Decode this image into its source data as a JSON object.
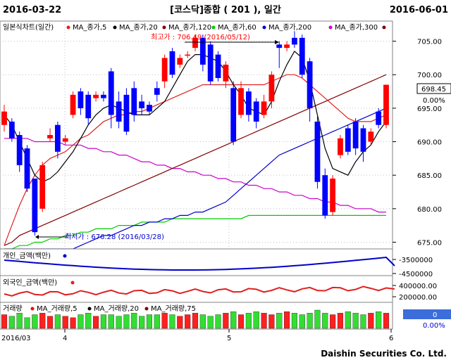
{
  "header": {
    "start_date": "2016-03-22",
    "title": "[코스닥]종합 ( 201 ), 일간",
    "end_date": "2016-06-01"
  },
  "legend": {
    "main": "일본식차트(일간)",
    "ma5": "MA_종가,5",
    "ma20": "MA_종가,20",
    "ma120": "MA_종가,120",
    "ma60": "MA_종가,60",
    "ma200": "MA_종가,200",
    "ma300": "MA_종가,300",
    "colors": {
      "ma5": "#000000",
      "ma20": "#e02020",
      "ma120": "#800000",
      "ma60": "#00cc00",
      "ma200": "#0000cc",
      "ma300": "#cc00cc",
      "up": "#ff0000",
      "down": "#0000ff"
    }
  },
  "annotations": {
    "high": "최고가 : 706.49 (2016/05/12)",
    "low": "최저가 : 676.28 (2016/03/28)"
  },
  "price_axis": {
    "ticks": [
      "705.00",
      "700.00",
      "695.00",
      "690.00",
      "685.00",
      "680.00",
      "675.00"
    ],
    "current": "698.45",
    "change": "0.00%",
    "min": 674,
    "max": 708
  },
  "panel_individual": {
    "label": "개인_금액(백만)",
    "ticks": [
      "-3500000",
      "-4500000"
    ]
  },
  "panel_foreign": {
    "label": "외국인_금액(백만)",
    "ticks": [
      "400000.00",
      "200000.00"
    ]
  },
  "panel_volume": {
    "label": "거래량",
    "ma5": "MA_거래량,5",
    "ma20": "MA_거래량,20",
    "ma75": "MA_거래량,75",
    "value": "0",
    "change": "0.00%"
  },
  "x_axis": {
    "labels": [
      "2016/03",
      "4",
      "5",
      "6"
    ]
  },
  "footer": "Daishin Securities Co. Ltd.",
  "chart_data": {
    "type": "candlestick",
    "candles": [
      {
        "o": 692.5,
        "c": 694.5,
        "h": 695.5,
        "l": 691.5
      },
      {
        "o": 693,
        "c": 690.5,
        "h": 693.5,
        "l": 690
      },
      {
        "o": 691,
        "c": 686.5,
        "h": 691.5,
        "l": 685.5
      },
      {
        "o": 689,
        "c": 683,
        "h": 689.5,
        "l": 682.5
      },
      {
        "o": 684.5,
        "c": 676.5,
        "h": 684.5,
        "l": 676
      },
      {
        "o": 680,
        "c": 686.5,
        "h": 687,
        "l": 679.5
      },
      {
        "o": 690.5,
        "c": 691,
        "h": 692,
        "l": 690
      },
      {
        "o": 692.5,
        "c": 688.5,
        "h": 693,
        "l": 687.5
      },
      {
        "o": 690,
        "c": 690.5,
        "h": 691,
        "l": 689.5
      },
      {
        "o": 694,
        "c": 697,
        "h": 697.5,
        "l": 693.5
      },
      {
        "o": 697.5,
        "c": 695,
        "h": 698,
        "l": 694
      },
      {
        "o": 697,
        "c": 693.5,
        "h": 697.5,
        "l": 692.5
      },
      {
        "o": 696.5,
        "c": 697,
        "h": 697.5,
        "l": 696
      },
      {
        "o": 697,
        "c": 696.5,
        "h": 697.5,
        "l": 696
      },
      {
        "o": 700.5,
        "c": 694,
        "h": 701,
        "l": 692
      },
      {
        "o": 696,
        "c": 693,
        "h": 697.5,
        "l": 692
      },
      {
        "o": 697,
        "c": 691.5,
        "h": 698,
        "l": 691
      },
      {
        "o": 698,
        "c": 694,
        "h": 699,
        "l": 693
      },
      {
        "o": 696,
        "c": 695,
        "h": 697,
        "l": 694
      },
      {
        "o": 695.5,
        "c": 694.5,
        "h": 696,
        "l": 694
      },
      {
        "o": 698,
        "c": 697,
        "h": 699,
        "l": 696
      },
      {
        "o": 699,
        "c": 702.5,
        "h": 703,
        "l": 698
      },
      {
        "o": 703.5,
        "c": 700,
        "h": 704,
        "l": 699.5
      },
      {
        "o": 701.5,
        "c": 702.5,
        "h": 703,
        "l": 701
      },
      {
        "o": 703,
        "c": 703,
        "h": 703.5,
        "l": 702.5
      },
      {
        "o": 704,
        "c": 705.5,
        "h": 706,
        "l": 703.5
      },
      {
        "o": 705.5,
        "c": 701.5,
        "h": 706,
        "l": 700.5
      },
      {
        "o": 704.5,
        "c": 699,
        "h": 705,
        "l": 698.5
      },
      {
        "o": 703,
        "c": 699.5,
        "h": 703.5,
        "l": 699
      },
      {
        "o": 699,
        "c": 701.5,
        "h": 702,
        "l": 698
      },
      {
        "o": 698,
        "c": 690,
        "h": 699,
        "l": 689.5
      },
      {
        "o": 694,
        "c": 698,
        "h": 699,
        "l": 693.5
      },
      {
        "o": 697.5,
        "c": 694,
        "h": 698,
        "l": 693
      },
      {
        "o": 696,
        "c": 693,
        "h": 696.5,
        "l": 692
      },
      {
        "o": 694,
        "c": 696,
        "h": 697,
        "l": 693.5
      },
      {
        "o": 696,
        "c": 700,
        "h": 700.5,
        "l": 695
      },
      {
        "o": 704.5,
        "c": 704,
        "h": 705,
        "l": 701
      },
      {
        "o": 704,
        "c": 704.5,
        "h": 705,
        "l": 703.5
      },
      {
        "o": 705.5,
        "c": 704.5,
        "h": 706.5,
        "l": 704
      },
      {
        "o": 705.5,
        "c": 700,
        "h": 706,
        "l": 699.5
      },
      {
        "o": 702,
        "c": 695,
        "h": 702.5,
        "l": 693
      },
      {
        "o": 693,
        "c": 684,
        "h": 694,
        "l": 683
      },
      {
        "o": 685,
        "c": 679,
        "h": 686,
        "l": 678.5
      },
      {
        "o": 679.5,
        "c": 684.5,
        "h": 685,
        "l": 679
      },
      {
        "o": 688,
        "c": 690.5,
        "h": 691,
        "l": 687.5
      },
      {
        "o": 692,
        "c": 688.5,
        "h": 692.5,
        "l": 688
      },
      {
        "o": 693,
        "c": 689,
        "h": 693.5,
        "l": 688
      },
      {
        "o": 692,
        "c": 688.5,
        "h": 692.5,
        "l": 687
      },
      {
        "o": 690,
        "c": 691.5,
        "h": 692,
        "l": 689.5
      },
      {
        "o": 694.5,
        "c": 692.5,
        "h": 695,
        "l": 692
      },
      {
        "o": 692.5,
        "c": 698.5,
        "h": 698.5,
        "l": 692
      }
    ],
    "ma5": [
      694,
      692.5,
      690,
      687.5,
      685,
      684,
      684.5,
      685.5,
      687,
      688.5,
      690.5,
      692.5,
      694,
      695,
      695.5,
      695,
      694.5,
      694,
      694,
      694,
      695,
      696,
      698,
      700,
      702,
      703,
      703,
      702.5,
      702,
      700.5,
      698.5,
      697,
      695,
      694.5,
      694,
      696,
      699,
      701.5,
      703.5,
      702.5,
      699,
      694,
      689,
      686,
      685.5,
      685,
      687,
      688.5,
      689.5,
      691.5,
      693
    ],
    "ma20": [
      674.5,
      677.5,
      680.5,
      683,
      685,
      686.5,
      687.5,
      688,
      688.5,
      689.5,
      690.5,
      691,
      692,
      693,
      693.5,
      694,
      694,
      694.5,
      694.5,
      695,
      695.5,
      696,
      696.5,
      697,
      697.5,
      698,
      698.5,
      698.5,
      698.5,
      698.5,
      698.5,
      698.5,
      698.5,
      698.5,
      698.5,
      699,
      699.5,
      700,
      700,
      699.5,
      698.5,
      697.5,
      696.5,
      695.5,
      694.5,
      693.5,
      693,
      693,
      693,
      693.5,
      694
    ],
    "ma60": [
      674,
      674,
      674.5,
      674.5,
      675,
      675,
      675.5,
      675.5,
      676,
      676,
      676.5,
      676.5,
      677,
      677,
      677,
      677.5,
      677.5,
      677.5,
      678,
      678,
      678,
      678,
      678.5,
      678.5,
      678.5,
      678.5,
      678.5,
      678.5,
      678.5,
      678.5,
      678.5,
      678.5,
      679,
      679,
      679,
      679,
      679,
      679,
      679,
      679,
      679,
      679,
      679,
      679,
      679,
      679,
      679,
      679,
      679,
      679,
      679
    ],
    "ma120": [
      674.5,
      675,
      676,
      676.5,
      677,
      677.5,
      678,
      678.5,
      679,
      679.5,
      680,
      680.5,
      681,
      681.5,
      682,
      682.5,
      683,
      683.5,
      684,
      684.5,
      685,
      685.5,
      686,
      686.5,
      687,
      687.5,
      688,
      688.5,
      689,
      689.5,
      690,
      690.5,
      691,
      691.5,
      692,
      692.5,
      693,
      693.5,
      694,
      694.5,
      695,
      695.5,
      696,
      696.5,
      697,
      697.5,
      698,
      698.5,
      699,
      699.5,
      700
    ],
    "ma200": [
      674,
      674,
      674,
      674,
      674,
      674,
      674,
      674,
      674,
      674,
      674.5,
      675,
      675.5,
      676,
      676,
      676.5,
      677,
      677.5,
      677.5,
      678,
      678,
      678.5,
      678.5,
      679,
      679,
      679.5,
      679.5,
      680,
      680.5,
      681,
      682,
      683,
      684,
      685,
      686,
      687,
      688,
      688.5,
      689,
      689.5,
      690,
      690.5,
      691,
      691.5,
      692,
      692.5,
      693,
      693.5,
      694,
      694.5,
      695
    ],
    "ma300": [
      690.5,
      690.5,
      690.5,
      690.5,
      690,
      690,
      690,
      690,
      689.5,
      689.5,
      689.5,
      689,
      689,
      688.5,
      688.5,
      688,
      688,
      687.5,
      687,
      687,
      686.5,
      686.5,
      686,
      686,
      685.5,
      685.5,
      685,
      685,
      684.5,
      684.5,
      684,
      684,
      683.5,
      683.5,
      683,
      683,
      682.5,
      682.5,
      682,
      682,
      681.5,
      681.5,
      681,
      681,
      680.5,
      680.5,
      680,
      680,
      680,
      679.5,
      679.5
    ],
    "volume": [
      9,
      8,
      10,
      7,
      9,
      10,
      8,
      9,
      8,
      7,
      9,
      10,
      8,
      9,
      9,
      8,
      9,
      10,
      8,
      9,
      9,
      10,
      9,
      8,
      9,
      10,
      9,
      8,
      9,
      10,
      11,
      9,
      10,
      11,
      10,
      9,
      10,
      11,
      10,
      9,
      10,
      12,
      10,
      9,
      10,
      11,
      10,
      9,
      10,
      11,
      10
    ]
  }
}
